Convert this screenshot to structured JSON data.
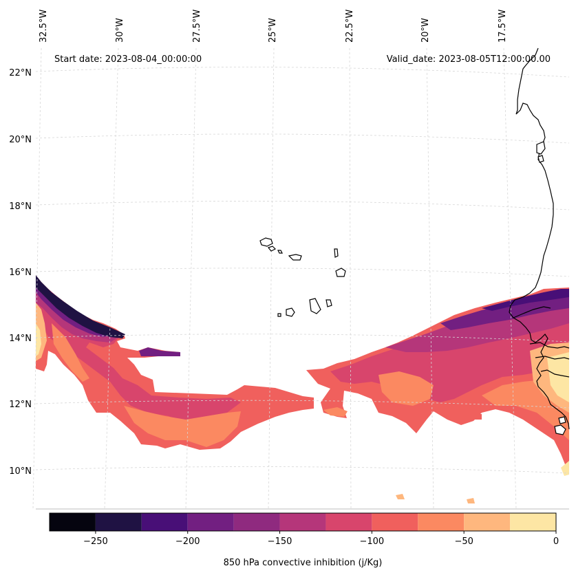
{
  "map": {
    "start_date": "Start date: 2023-08-04_00:00:00",
    "valid_date": "Valid_date: 2023-08-05T12:00:00.00",
    "lon_labels": [
      "32.5°W",
      "30°W",
      "27.5°W",
      "25°W",
      "22.5°W",
      "20°W",
      "17.5°W"
    ],
    "lat_labels": [
      "22°N",
      "20°N",
      "18°N",
      "16°N",
      "14°N",
      "12°N",
      "10°N"
    ],
    "projection": "Lambert conformal",
    "lon_range": [
      -33,
      -15.8
    ],
    "lat_range": [
      9,
      22.8
    ]
  },
  "colorbar": {
    "label": "850 hPa convective inhibition (j/Kg)",
    "tick_labels": [
      "−250",
      "−200",
      "−150",
      "−100",
      "−50",
      "0"
    ],
    "levels": [
      -275,
      -250,
      -225,
      -200,
      -175,
      -150,
      -125,
      -100,
      -75,
      -50,
      -25,
      0
    ],
    "colors": [
      "#05040f",
      "#1f1243",
      "#480f77",
      "#721f81",
      "#8f2a7f",
      "#b5367a",
      "#d8456c",
      "#f0605d",
      "#fb8961",
      "#feb77e",
      "#fde6a4"
    ]
  }
}
